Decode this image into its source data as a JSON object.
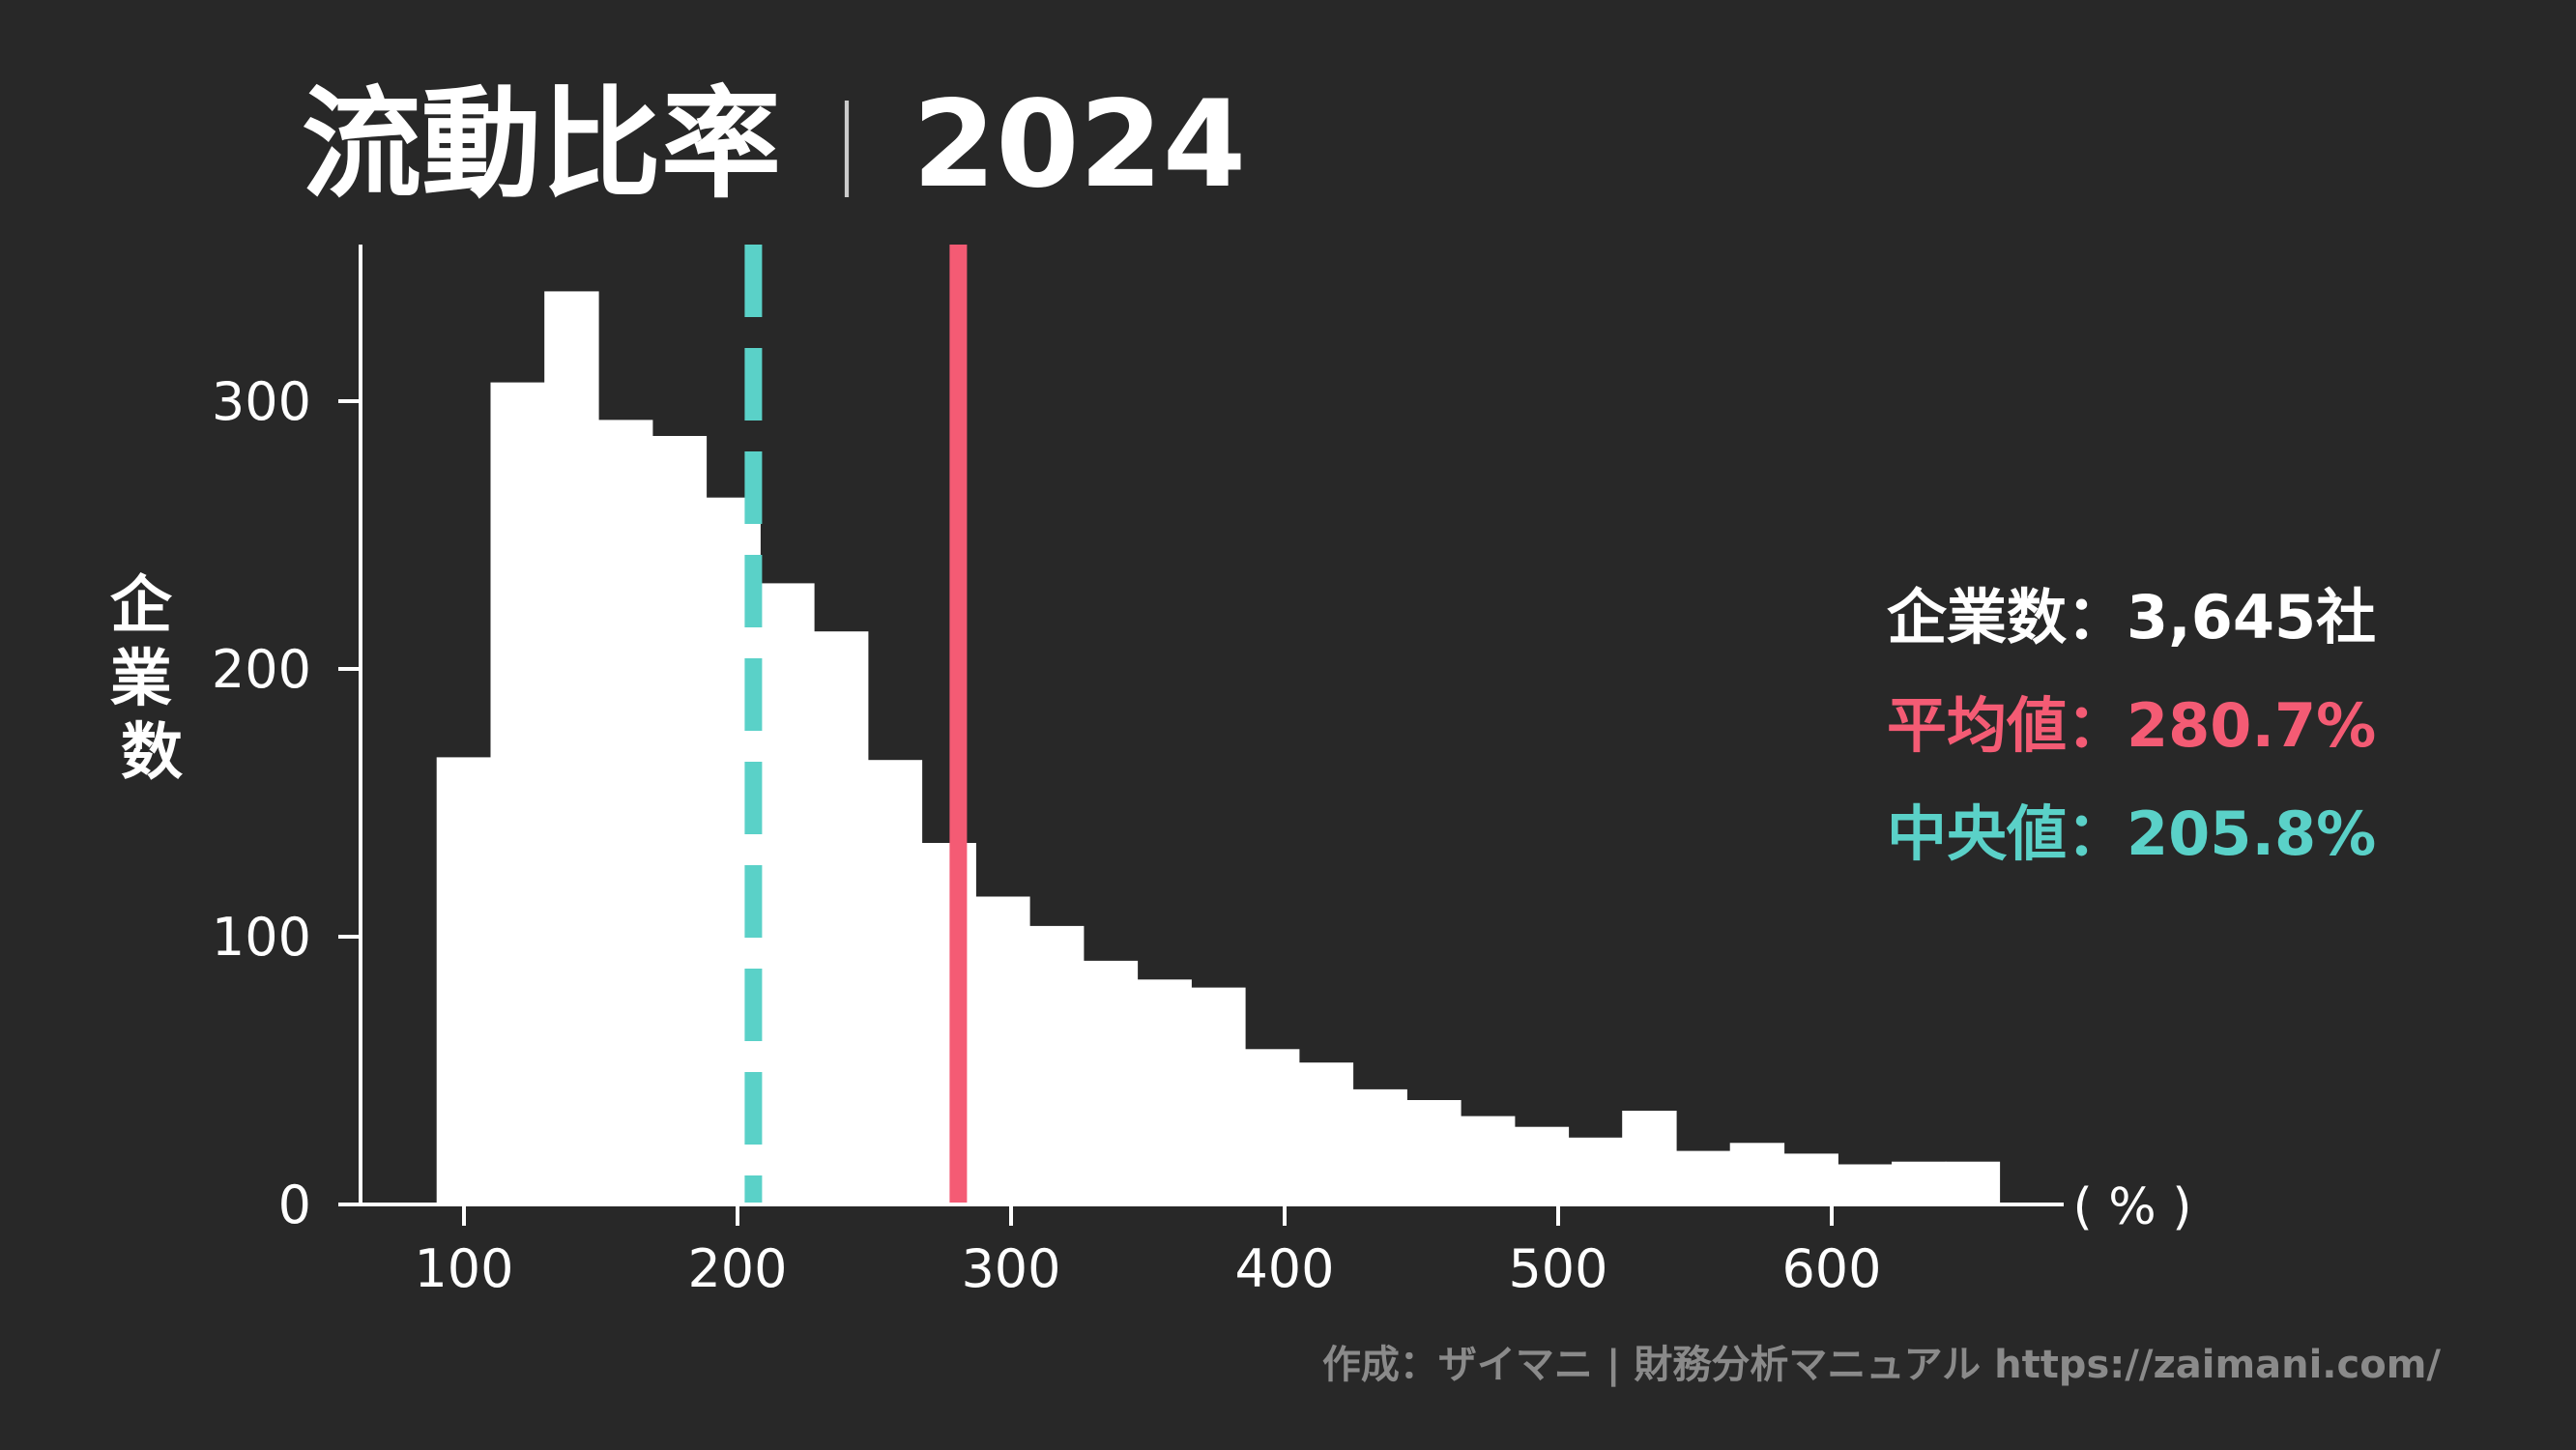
{
  "title": {
    "main": "流動比率",
    "separator": "｜",
    "year": "2024"
  },
  "colors": {
    "background": "#282828",
    "bars": "#ffffff",
    "mean": "#f45b74",
    "median": "#5ad1c8",
    "credit": "#8a8a8a"
  },
  "chart_data": {
    "type": "bar",
    "subtype": "histogram",
    "title": "流動比率｜2024",
    "xlabel": "",
    "x_unit": "( % )",
    "ylabel": "企業数",
    "xlim": [
      60,
      690
    ],
    "ylim": [
      0,
      360
    ],
    "xticks": [
      100,
      200,
      300,
      400,
      500,
      600
    ],
    "yticks": [
      0,
      100,
      200,
      300
    ],
    "bin_width": 19.7,
    "bins": [
      {
        "x0": 90.0,
        "value": 167
      },
      {
        "x0": 109.7,
        "value": 307
      },
      {
        "x0": 129.4,
        "value": 341
      },
      {
        "x0": 149.1,
        "value": 293
      },
      {
        "x0": 168.8,
        "value": 287
      },
      {
        "x0": 188.5,
        "value": 264
      },
      {
        "x0": 208.2,
        "value": 232
      },
      {
        "x0": 227.9,
        "value": 214
      },
      {
        "x0": 247.6,
        "value": 166
      },
      {
        "x0": 267.3,
        "value": 135
      },
      {
        "x0": 287.0,
        "value": 115
      },
      {
        "x0": 306.7,
        "value": 104
      },
      {
        "x0": 326.4,
        "value": 91
      },
      {
        "x0": 346.1,
        "value": 84
      },
      {
        "x0": 365.8,
        "value": 81
      },
      {
        "x0": 385.5,
        "value": 58
      },
      {
        "x0": 405.2,
        "value": 53
      },
      {
        "x0": 424.9,
        "value": 43
      },
      {
        "x0": 444.6,
        "value": 39
      },
      {
        "x0": 464.3,
        "value": 33
      },
      {
        "x0": 484.0,
        "value": 29
      },
      {
        "x0": 503.7,
        "value": 25
      },
      {
        "x0": 523.4,
        "value": 35
      },
      {
        "x0": 543.1,
        "value": 20
      },
      {
        "x0": 562.8,
        "value": 23
      },
      {
        "x0": 582.5,
        "value": 19
      },
      {
        "x0": 602.2,
        "value": 15
      },
      {
        "x0": 621.9,
        "value": 16
      },
      {
        "x0": 641.6,
        "value": 16
      }
    ],
    "reference_lines": [
      {
        "name": "平均値",
        "x": 280.7,
        "style": "solid",
        "color": "#f45b74"
      },
      {
        "name": "中央値",
        "x": 205.8,
        "style": "dashed",
        "color": "#5ad1c8"
      }
    ],
    "grid": false,
    "legend": "none"
  },
  "stats": {
    "count_label": "企業数",
    "count_value": "3,645社",
    "mean_label": "平均値",
    "mean_value": "280.7%",
    "median_label": "中央値",
    "median_value": "205.8%",
    "colon": "："
  },
  "credit": "作成：ザイマニ | 財務分析マニュアル https://zaimani.com/"
}
